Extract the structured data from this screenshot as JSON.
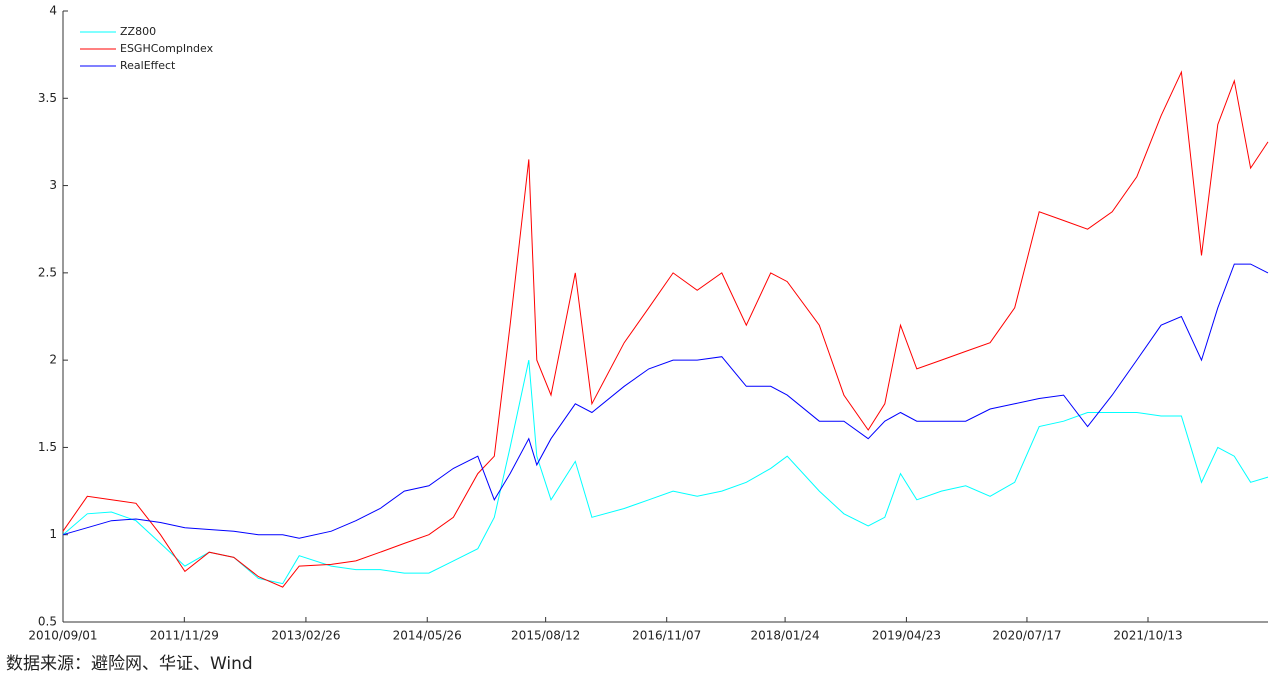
{
  "chart_data": {
    "type": "line",
    "x": [
      "2010/09/01",
      "2010/12/01",
      "2011/03/01",
      "2011/06/01",
      "2011/09/01",
      "2011/12/01",
      "2012/03/01",
      "2012/06/01",
      "2012/09/01",
      "2012/12/01",
      "2013/02/01",
      "2013/06/01",
      "2013/09/01",
      "2013/12/01",
      "2014/03/01",
      "2014/06/01",
      "2014/09/01",
      "2014/12/01",
      "2015/02/01",
      "2015/04/01",
      "2015/06/10",
      "2015/07/10",
      "2015/09/01",
      "2015/12/01",
      "2016/02/01",
      "2016/06/01",
      "2016/09/01",
      "2016/12/01",
      "2017/03/01",
      "2017/06/01",
      "2017/09/01",
      "2017/12/01",
      "2018/02/01",
      "2018/06/01",
      "2018/09/01",
      "2018/12/01",
      "2019/02/01",
      "2019/04/01",
      "2019/06/01",
      "2019/09/01",
      "2019/12/01",
      "2020/03/01",
      "2020/06/01",
      "2020/09/01",
      "2020/12/01",
      "2021/03/01",
      "2021/06/01",
      "2021/09/01",
      "2021/12/01",
      "2022/02/15",
      "2022/05/01",
      "2022/07/01",
      "2022/09/01",
      "2022/11/01",
      "2023/01/05"
    ],
    "series": [
      {
        "name": "ZZ800",
        "color": "#00ffff",
        "values": [
          1.0,
          1.12,
          1.13,
          1.08,
          0.95,
          0.82,
          0.9,
          0.87,
          0.75,
          0.72,
          0.88,
          0.82,
          0.8,
          0.8,
          0.78,
          0.78,
          0.85,
          0.92,
          1.1,
          1.5,
          2.0,
          1.45,
          1.2,
          1.42,
          1.1,
          1.15,
          1.2,
          1.25,
          1.22,
          1.25,
          1.3,
          1.38,
          1.45,
          1.25,
          1.12,
          1.05,
          1.1,
          1.35,
          1.2,
          1.25,
          1.28,
          1.22,
          1.3,
          1.62,
          1.65,
          1.7,
          1.7,
          1.7,
          1.68,
          1.68,
          1.3,
          1.5,
          1.45,
          1.3,
          1.33
        ]
      },
      {
        "name": "ESGHCompIndex",
        "color": "#ff0000",
        "values": [
          1.02,
          1.22,
          1.2,
          1.18,
          1.0,
          0.79,
          0.9,
          0.87,
          0.76,
          0.7,
          0.82,
          0.83,
          0.85,
          0.9,
          0.95,
          1.0,
          1.1,
          1.35,
          1.45,
          2.2,
          3.15,
          2.0,
          1.8,
          2.5,
          1.75,
          2.1,
          2.3,
          2.5,
          2.4,
          2.5,
          2.2,
          2.5,
          2.45,
          2.2,
          1.8,
          1.6,
          1.75,
          2.2,
          1.95,
          2.0,
          2.05,
          2.1,
          2.3,
          2.85,
          2.8,
          2.75,
          2.85,
          3.05,
          3.4,
          3.65,
          2.6,
          3.35,
          3.6,
          3.1,
          3.25
        ]
      },
      {
        "name": "RealEffect",
        "color": "#0000ff",
        "values": [
          1.0,
          1.04,
          1.08,
          1.09,
          1.07,
          1.04,
          1.03,
          1.02,
          1.0,
          1.0,
          0.98,
          1.02,
          1.08,
          1.15,
          1.25,
          1.28,
          1.38,
          1.45,
          1.2,
          1.35,
          1.55,
          1.4,
          1.55,
          1.75,
          1.7,
          1.85,
          1.95,
          2.0,
          2.0,
          2.02,
          1.85,
          1.85,
          1.8,
          1.65,
          1.65,
          1.55,
          1.65,
          1.7,
          1.65,
          1.65,
          1.65,
          1.72,
          1.75,
          1.78,
          1.8,
          1.62,
          1.8,
          2.0,
          2.2,
          2.25,
          2.0,
          2.3,
          2.55,
          2.55,
          2.5
        ]
      }
    ],
    "xlim": [
      "2010/09/01",
      "2023/01/05"
    ],
    "xticks": [
      "2010/09/01",
      "2011/11/29",
      "2013/02/26",
      "2014/05/26",
      "2015/08/12",
      "2016/11/07",
      "2018/01/24",
      "2019/04/23",
      "2020/07/17",
      "2021/10/13"
    ],
    "ylim": [
      0.5,
      4
    ],
    "yticks": [
      0.5,
      1,
      1.5,
      2,
      2.5,
      3,
      3.5,
      4
    ],
    "legend": "top-left",
    "source": "数据来源：避险网、华证、Wind"
  }
}
